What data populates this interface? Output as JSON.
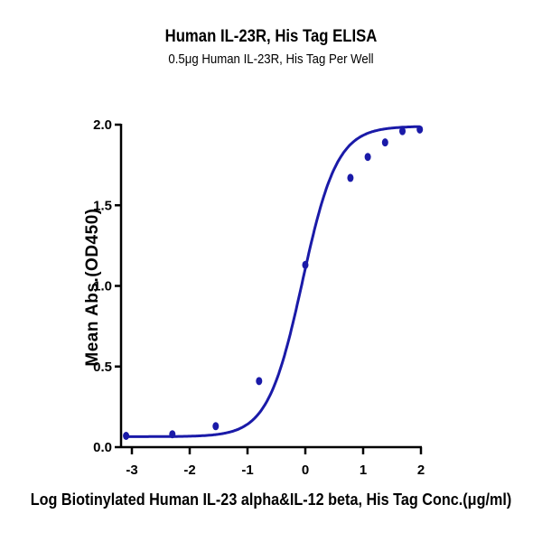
{
  "chart_data": {
    "type": "scatter",
    "title": "Human IL-23R, His Tag ELISA",
    "subtitle": "0.5μg Human IL-23R, His Tag Per Well",
    "xlabel": "Log Biotinylated Human IL-23 alpha&IL-12 beta, His Tag Conc.(μg/ml)",
    "ylabel": "Mean Abs.(OD450)",
    "xlim": [
      -3.2,
      2.0
    ],
    "ylim": [
      0.0,
      2.0
    ],
    "xticks": [
      "-3",
      "-2",
      "-1",
      "0",
      "1",
      "2"
    ],
    "yticks": [
      "0.0",
      "0.5",
      "1.0",
      "1.5",
      "2.0"
    ],
    "grid": false,
    "legend": null,
    "series": [
      {
        "name": "Mean Abs.(OD450)",
        "color": "#1a1aa8",
        "fit": "4PL sigmoid curve",
        "x": [
          -3.1,
          -2.3,
          -1.55,
          -0.8,
          0.0,
          0.78,
          1.08,
          1.38,
          1.68,
          1.98
        ],
        "y": [
          0.07,
          0.08,
          0.13,
          0.41,
          1.13,
          1.67,
          1.8,
          1.89,
          1.96,
          1.97
        ]
      }
    ]
  }
}
